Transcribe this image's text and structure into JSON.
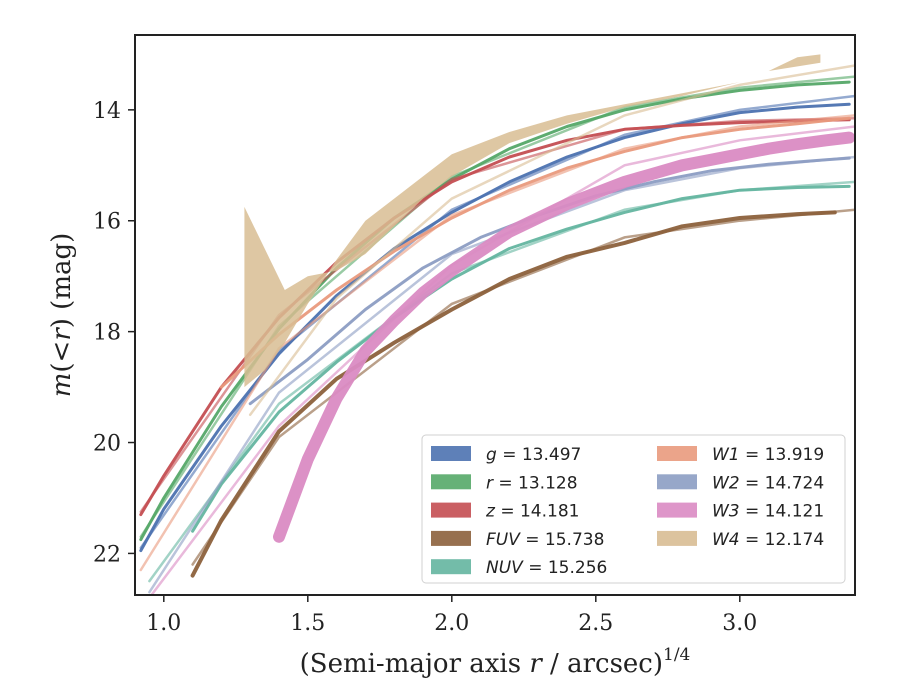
{
  "chart_data": {
    "type": "line",
    "xlabel": "(Semi-major axis r / arcsec)^1/4",
    "xlabel_parts": {
      "main": "(Semi-major axis ",
      "var": "r",
      "rest": " / arcsec)",
      "sup": "1/4"
    },
    "ylabel": "m(< r) (mag)",
    "ylabel_parts": {
      "m": "m",
      "lp": "(",
      "lt": "<",
      "r": "r",
      "rp": ")",
      "unit": " (mag)"
    },
    "xlim": [
      0.9,
      3.4
    ],
    "ylim": [
      22.75,
      12.65
    ],
    "y_inverted": true,
    "xticks": [
      1.0,
      1.5,
      2.0,
      2.5,
      3.0
    ],
    "xtick_labels": [
      "1.0",
      "1.5",
      "2.0",
      "2.5",
      "3.0"
    ],
    "yticks": [
      14,
      16,
      18,
      20,
      22
    ],
    "ytick_labels": [
      "14",
      "16",
      "18",
      "20",
      "22"
    ],
    "grid": false,
    "legend_position": "lower-right",
    "legend_columns": 2,
    "series": [
      {
        "name": "g",
        "label": "g = 13.497",
        "color": "#4c72b0",
        "width": 3,
        "x": [
          0.92,
          1.0,
          1.2,
          1.4,
          1.6,
          1.8,
          2.0,
          2.2,
          2.4,
          2.6,
          2.8,
          3.0,
          3.2,
          3.38
        ],
        "y": [
          21.95,
          21.2,
          19.7,
          18.4,
          17.35,
          16.5,
          15.85,
          15.3,
          14.85,
          14.5,
          14.25,
          14.05,
          13.95,
          13.9
        ],
        "model": {
          "x": [
            0.92,
            1.4,
            2.0,
            2.6,
            3.0,
            3.4
          ],
          "y": [
            21.9,
            18.35,
            15.8,
            14.45,
            14.0,
            13.75
          ]
        }
      },
      {
        "name": "r",
        "label": "r = 13.128",
        "color": "#55a868",
        "width": 3,
        "x": [
          0.92,
          1.0,
          1.2,
          1.4,
          1.6,
          1.8,
          2.0,
          2.2,
          2.4,
          2.6,
          2.8,
          3.0,
          3.2,
          3.38
        ],
        "y": [
          21.75,
          21.0,
          19.35,
          17.95,
          16.85,
          15.95,
          15.25,
          14.7,
          14.3,
          14.0,
          13.8,
          13.65,
          13.55,
          13.5
        ],
        "model": {
          "x": [
            0.92,
            1.4,
            2.0,
            2.6,
            3.0,
            3.4
          ],
          "y": [
            21.7,
            17.9,
            15.2,
            13.95,
            13.6,
            13.4
          ]
        }
      },
      {
        "name": "z",
        "label": "z = 14.181",
        "color": "#c44e52",
        "width": 3,
        "x": [
          0.92,
          1.0,
          1.2,
          1.4,
          1.6,
          1.8,
          2.0,
          2.2,
          2.4,
          2.6,
          2.8,
          3.0,
          3.2,
          3.38
        ],
        "y": [
          21.3,
          20.6,
          19.0,
          17.75,
          16.75,
          15.95,
          15.3,
          14.85,
          14.55,
          14.35,
          14.28,
          14.23,
          14.2,
          14.18
        ],
        "model": {
          "x": [
            0.92,
            1.4,
            2.0,
            2.6,
            3.0,
            3.4
          ],
          "y": [
            21.25,
            17.7,
            15.25,
            14.35,
            14.2,
            14.15
          ]
        }
      },
      {
        "name": "FUV",
        "label": "FUV = 15.738",
        "color": "#8c613c",
        "width": 4,
        "x": [
          1.1,
          1.2,
          1.4,
          1.6,
          1.8,
          2.0,
          2.2,
          2.4,
          2.6,
          2.8,
          3.0,
          3.2,
          3.33
        ],
        "y": [
          22.4,
          21.4,
          19.8,
          18.85,
          18.2,
          17.6,
          17.05,
          16.65,
          16.4,
          16.1,
          15.95,
          15.88,
          15.85
        ],
        "model": {
          "x": [
            1.1,
            1.4,
            2.0,
            2.6,
            3.0,
            3.4
          ],
          "y": [
            22.2,
            19.9,
            17.5,
            16.3,
            16.0,
            15.8
          ]
        }
      },
      {
        "name": "NUV",
        "label": "NUV = 15.256",
        "color": "#64b5a0",
        "width": 3,
        "x": [
          1.1,
          1.2,
          1.4,
          1.6,
          1.8,
          2.0,
          2.2,
          2.4,
          2.6,
          2.8,
          3.0,
          3.2,
          3.38
        ],
        "y": [
          21.6,
          20.75,
          19.45,
          18.55,
          17.75,
          17.05,
          16.5,
          16.15,
          15.85,
          15.6,
          15.45,
          15.4,
          15.38
        ],
        "model": {
          "x": [
            0.95,
            1.4,
            2.0,
            2.6,
            3.0,
            3.4
          ],
          "y": [
            22.5,
            19.3,
            16.95,
            15.8,
            15.45,
            15.3
          ]
        }
      },
      {
        "name": "W1",
        "label": "W1 = 13.919",
        "color": "#e99a7d",
        "width": 3,
        "x": [
          1.2,
          1.4,
          1.6,
          1.8,
          2.0,
          2.2,
          2.4,
          2.6,
          2.8,
          3.0,
          3.2,
          3.38
        ],
        "y": [
          19.0,
          18.05,
          17.25,
          16.55,
          15.95,
          15.45,
          15.05,
          14.75,
          14.5,
          14.35,
          14.25,
          14.15
        ],
        "model": {
          "x": [
            0.92,
            1.4,
            2.0,
            2.6,
            3.0,
            3.4
          ],
          "y": [
            22.3,
            18.3,
            15.9,
            14.7,
            14.3,
            14.1
          ]
        }
      },
      {
        "name": "W2",
        "label": "W2 = 14.724",
        "color": "#8c9dc3",
        "width": 3,
        "x": [
          1.3,
          1.5,
          1.7,
          1.9,
          2.1,
          2.3,
          2.5,
          2.7,
          2.9,
          3.1,
          3.3,
          3.38
        ],
        "y": [
          19.3,
          18.5,
          17.6,
          16.85,
          16.3,
          15.9,
          15.55,
          15.3,
          15.1,
          14.98,
          14.9,
          14.87
        ],
        "model": {
          "x": [
            0.95,
            1.4,
            2.0,
            2.6,
            3.0,
            3.4
          ],
          "y": [
            22.7,
            19.1,
            16.6,
            15.45,
            15.05,
            14.85
          ]
        }
      },
      {
        "name": "W3",
        "label": "W3 = 14.121",
        "color": "#da8bc3",
        "width": 12,
        "x": [
          1.4,
          1.5,
          1.6,
          1.7,
          1.8,
          1.9,
          2.0,
          2.1,
          2.2,
          2.3,
          2.4,
          2.5,
          2.6,
          2.7,
          2.8,
          2.9,
          3.0,
          3.1,
          3.2,
          3.3,
          3.38
        ],
        "y": [
          21.7,
          20.3,
          19.2,
          18.35,
          17.8,
          17.3,
          16.9,
          16.55,
          16.2,
          15.95,
          15.7,
          15.5,
          15.3,
          15.15,
          15.0,
          14.9,
          14.8,
          14.7,
          14.62,
          14.55,
          14.5
        ],
        "model": {
          "x": [
            0.95,
            1.4,
            2.0,
            2.6,
            3.0,
            3.4
          ],
          "y": [
            22.8,
            19.7,
            16.8,
            15.0,
            14.55,
            14.3
          ]
        }
      },
      {
        "name": "W4",
        "label": "W4 = 12.174",
        "color": "#d8bd93",
        "width": 3,
        "band": {
          "x": [
            1.28,
            1.28,
            1.42,
            1.5,
            1.6,
            1.7,
            1.8,
            1.9,
            2.0,
            2.1,
            2.2,
            2.4,
            2.6,
            2.8,
            3.0,
            3.1,
            3.2,
            3.28,
            3.28,
            3.1,
            3.0,
            2.8,
            2.6,
            2.4,
            2.2,
            2.0,
            1.9,
            1.8,
            1.7,
            1.6,
            1.5,
            1.42,
            1.35,
            1.28
          ],
          "ylow": [
            15.75,
            15.75,
            17.25,
            17.0,
            16.9,
            16.6,
            16.1,
            15.6,
            15.2,
            14.9,
            14.6,
            14.25,
            13.95,
            13.75,
            13.5,
            13.3,
            13.05,
            13.0
          ],
          "yhigh": [
            22.9,
            19.4,
            19.0,
            18.7,
            18.2,
            17.5,
            16.7,
            16.0,
            15.6,
            15.2,
            14.8,
            14.4,
            14.1,
            13.9,
            13.7,
            13.5,
            13.3,
            13.15
          ]
        },
        "model": {
          "x": [
            1.3,
            1.6,
            2.0,
            2.6,
            3.0,
            3.4
          ],
          "y": [
            19.5,
            17.4,
            15.6,
            14.1,
            13.55,
            13.2
          ]
        }
      }
    ],
    "legend": [
      {
        "series": "g",
        "prefix": "g",
        "value": " = 13.497",
        "color": "#4c72b0"
      },
      {
        "series": "r",
        "prefix": "r",
        "value": " = 13.128",
        "color": "#55a868"
      },
      {
        "series": "z",
        "prefix": "z",
        "value": " = 14.181",
        "color": "#c44e52"
      },
      {
        "series": "FUV",
        "prefix": "FUV",
        "value": " = 15.738",
        "color": "#8c613c"
      },
      {
        "series": "NUV",
        "prefix": "NUV",
        "value": " = 15.256",
        "color": "#64b5a0"
      },
      {
        "series": "W1",
        "prefix": "W1",
        "value": " = 13.919",
        "color": "#e99a7d"
      },
      {
        "series": "W2",
        "prefix": "W2",
        "value": " = 14.724",
        "color": "#8c9dc3"
      },
      {
        "series": "W3",
        "prefix": "W3",
        "value": " = 14.121",
        "color": "#da8bc3"
      },
      {
        "series": "W4",
        "prefix": "W4",
        "value": " = 12.174",
        "color": "#d8bd93"
      }
    ]
  }
}
